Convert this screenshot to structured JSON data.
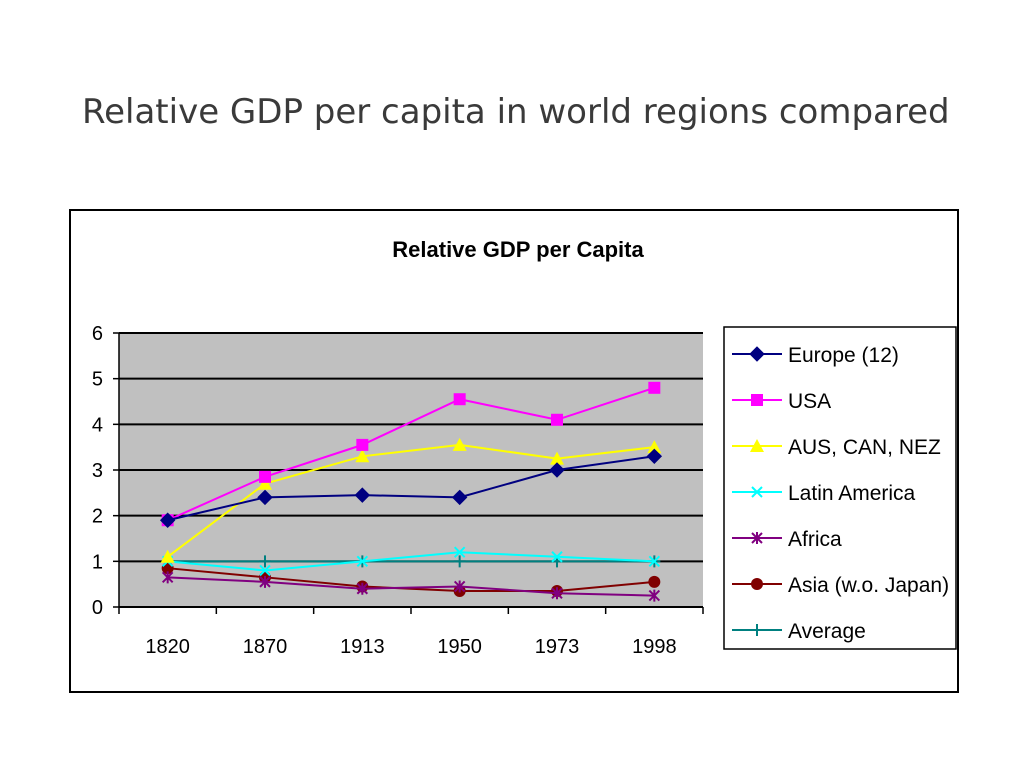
{
  "slide": {
    "title": "Relative GDP per capita in world regions compared"
  },
  "chart_data": {
    "type": "line",
    "title": "Relative GDP per Capita",
    "xlabel": "",
    "ylabel": "",
    "categories": [
      "1820",
      "1870",
      "1913",
      "1950",
      "1973",
      "1998"
    ],
    "ylim": [
      0,
      6
    ],
    "yticks": [
      0,
      1,
      2,
      3,
      4,
      5,
      6
    ],
    "grid": true,
    "plot_background": "#c0c0c0",
    "legend_position": "right",
    "series": [
      {
        "name": "Europe (12)",
        "color": "#000080",
        "marker": "diamond",
        "values": [
          1.9,
          2.4,
          2.45,
          2.4,
          3.0,
          3.3
        ]
      },
      {
        "name": "USA",
        "color": "#ff00ff",
        "marker": "square",
        "values": [
          1.9,
          2.85,
          3.55,
          4.55,
          4.1,
          4.8
        ]
      },
      {
        "name": "AUS, CAN, NEZ",
        "color": "#ffff00",
        "marker": "triangle",
        "values": [
          1.1,
          2.7,
          3.3,
          3.55,
          3.25,
          3.5
        ]
      },
      {
        "name": "Latin America",
        "color": "#00ffff",
        "marker": "x",
        "values": [
          1.0,
          0.8,
          1.0,
          1.2,
          1.1,
          1.0
        ]
      },
      {
        "name": "Africa",
        "color": "#800080",
        "marker": "star",
        "values": [
          0.65,
          0.55,
          0.4,
          0.45,
          0.3,
          0.25
        ]
      },
      {
        "name": "Asia (w.o. Japan)",
        "color": "#800000",
        "marker": "circle",
        "values": [
          0.85,
          0.65,
          0.45,
          0.35,
          0.35,
          0.55
        ]
      },
      {
        "name": "Average",
        "color": "#008080",
        "marker": "plus",
        "values": [
          1.0,
          1.0,
          1.0,
          1.0,
          1.0,
          1.0
        ]
      }
    ]
  }
}
